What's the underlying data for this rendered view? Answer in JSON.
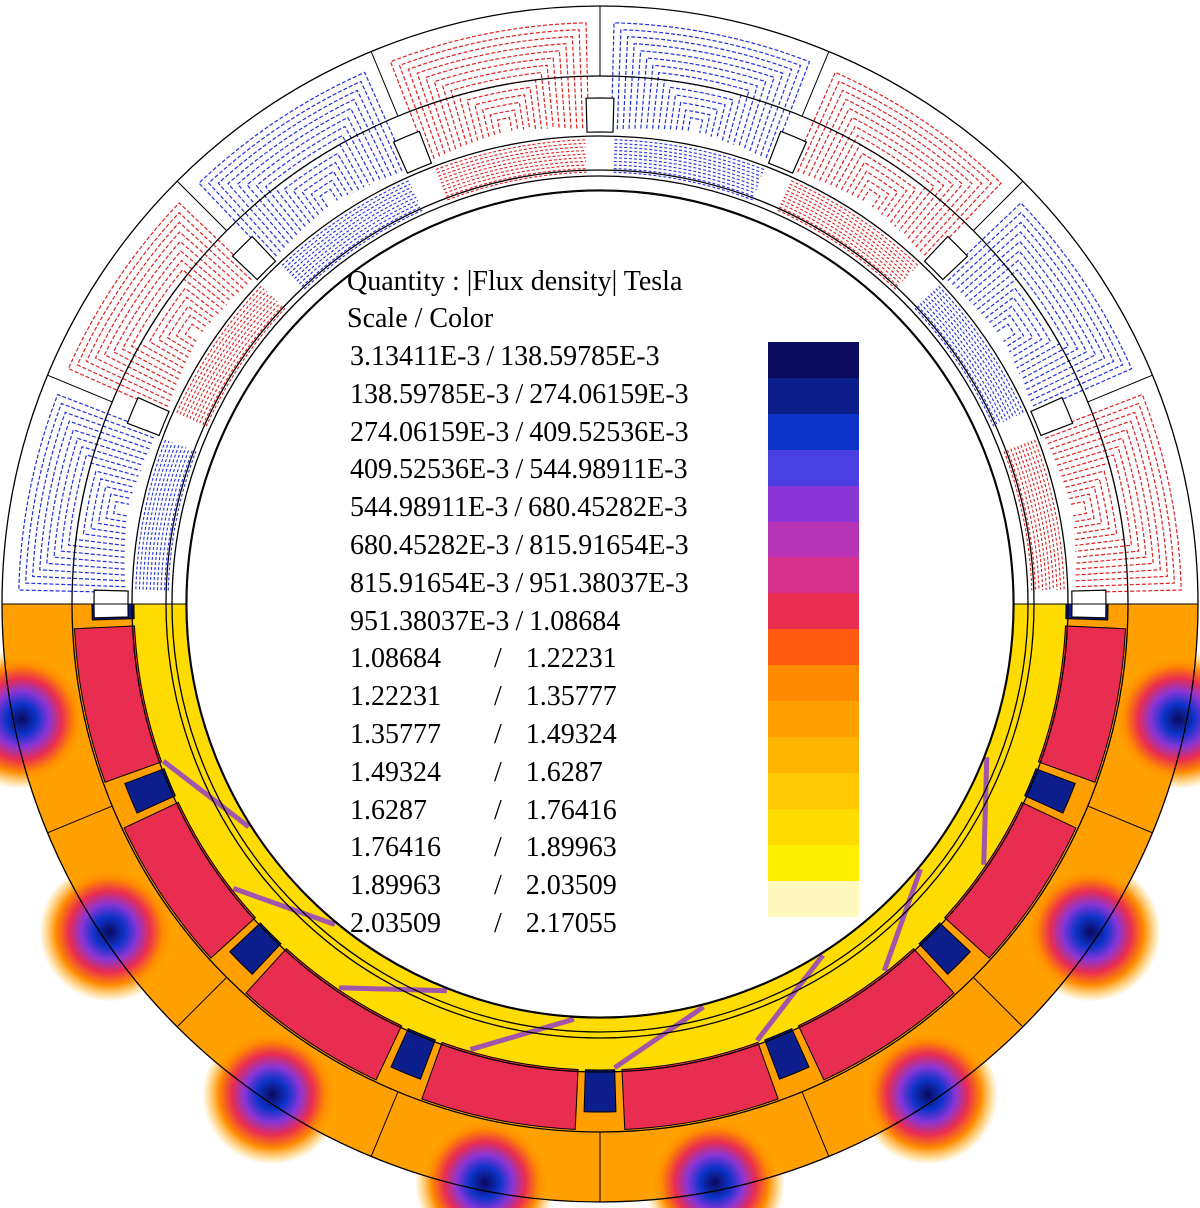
{
  "legend": {
    "quantity_label": "Quantity : |Flux density| Tesla",
    "scale_label": "Scale / Color",
    "ranges": [
      {
        "low": "3.13411E-3",
        "high": "138.59785E-3",
        "color": "#0a0a5e"
      },
      {
        "low": "138.59785E-3",
        "high": "274.06159E-3",
        "color": "#0b1e8c"
      },
      {
        "low": "274.06159E-3",
        "high": "409.52536E-3",
        "color": "#0d33c9"
      },
      {
        "low": "409.52536E-3",
        "high": "544.98911E-3",
        "color": "#4a3fe0"
      },
      {
        "low": "544.98911E-3",
        "high": "680.45282E-3",
        "color": "#8a35d6"
      },
      {
        "low": "680.45282E-3",
        "high": "815.91654E-3",
        "color": "#b533b4"
      },
      {
        "low": "815.91654E-3",
        "high": "951.38037E-3",
        "color": "#d6318a"
      },
      {
        "low": "951.38037E-3",
        "high": "1.08684",
        "color": "#e92d50"
      },
      {
        "low": "1.08684",
        "high": "1.22231",
        "color": "#ff5a10"
      },
      {
        "low": "1.22231",
        "high": "1.35777",
        "color": "#ff8a00"
      },
      {
        "low": "1.35777",
        "high": "1.49324",
        "color": "#ffa000"
      },
      {
        "low": "1.49324",
        "high": "1.6287",
        "color": "#ffb400"
      },
      {
        "low": "1.6287",
        "high": "1.76416",
        "color": "#ffc800"
      },
      {
        "low": "1.76416",
        "high": "1.89963",
        "color": "#ffdc00"
      },
      {
        "low": "1.89963",
        "high": "2.03509",
        "color": "#fff000"
      },
      {
        "low": "2.03509",
        "high": "2.17055",
        "color": "#fff9bf"
      }
    ]
  },
  "colors": {
    "flux_line_positive": "#e02020",
    "flux_line_negative": "#2030e0",
    "outline": "#000000",
    "background": "#ffffff"
  }
}
